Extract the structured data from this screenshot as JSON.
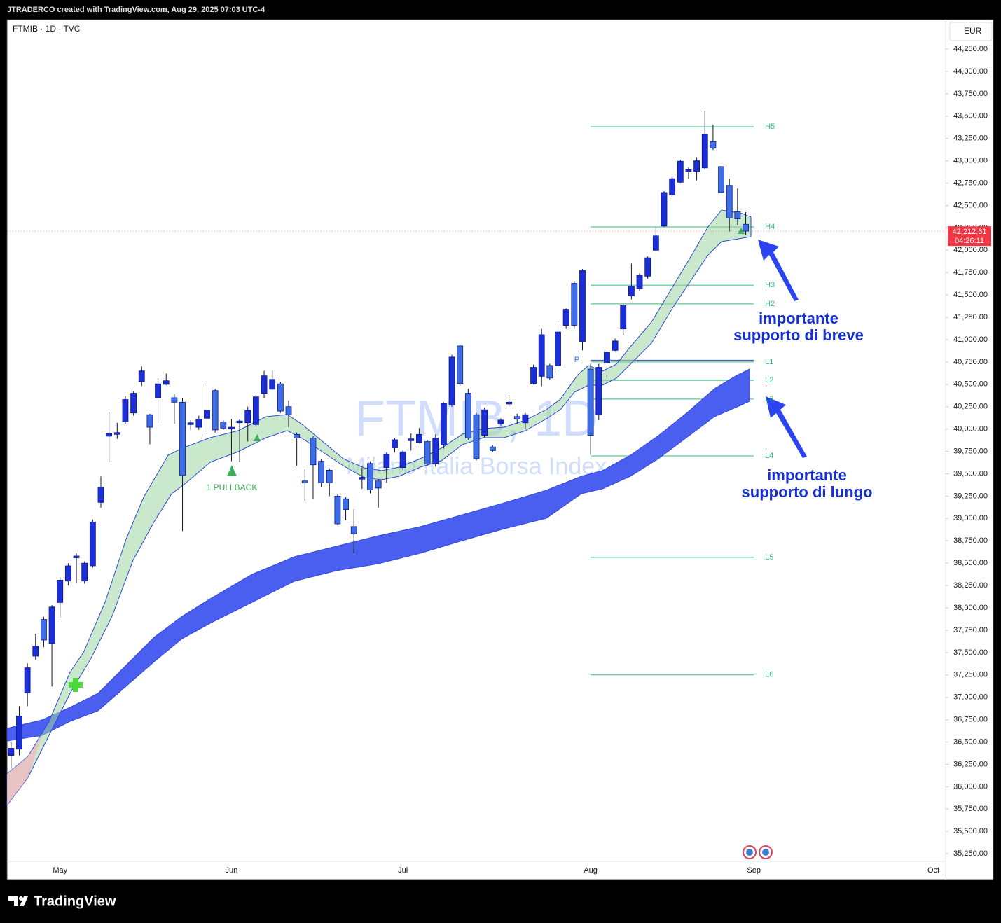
{
  "header": "JTRADERCO created with TradingView.com, Aug 29, 2025 07:03 UTC-4",
  "footer_brand": "TradingView",
  "chart_data": {
    "type": "candlestick",
    "symbol_line": "FTMIB · 1D · TVC",
    "currency": "EUR",
    "watermark": "FTMIB, 1D",
    "watermark_subtitle": "Milano Italia Borsa Index",
    "up_color": "#1c2fd6",
    "down_color": "#3d6ee6",
    "ylim": [
      35165,
      44579
    ],
    "yticks": [
      {
        "value": 35250,
        "label": "35,250.00"
      },
      {
        "value": 35500,
        "label": "35,500.00"
      },
      {
        "value": 35750,
        "label": "35,750.00"
      },
      {
        "value": 36000,
        "label": "36,000.00"
      },
      {
        "value": 36250,
        "label": "36,250.00"
      },
      {
        "value": 36500,
        "label": "36,500.00"
      },
      {
        "value": 36750,
        "label": "36,750.00"
      },
      {
        "value": 37000,
        "label": "37,000.00"
      },
      {
        "value": 37250,
        "label": "37,250.00"
      },
      {
        "value": 37500,
        "label": "37,500.00"
      },
      {
        "value": 37750,
        "label": "37,750.00"
      },
      {
        "value": 38000,
        "label": "38,000.00"
      },
      {
        "value": 38250,
        "label": "38,250.00"
      },
      {
        "value": 38500,
        "label": "38,500.00"
      },
      {
        "value": 38750,
        "label": "38,750.00"
      },
      {
        "value": 39000,
        "label": "39,000.00"
      },
      {
        "value": 39250,
        "label": "39,250.00"
      },
      {
        "value": 39500,
        "label": "39,500.00"
      },
      {
        "value": 39750,
        "label": "39,750.00"
      },
      {
        "value": 40000,
        "label": "40,000.00"
      },
      {
        "value": 40250,
        "label": "40,250.00"
      },
      {
        "value": 40500,
        "label": "40,500.00"
      },
      {
        "value": 40750,
        "label": "40,750.00"
      },
      {
        "value": 41000,
        "label": "41,000.00"
      },
      {
        "value": 41250,
        "label": "41,250.00"
      },
      {
        "value": 41500,
        "label": "41,500.00"
      },
      {
        "value": 41750,
        "label": "41,750.00"
      },
      {
        "value": 42000,
        "label": "42,000.00"
      },
      {
        "value": 42250,
        "label": "42,250.00"
      },
      {
        "value": 42500,
        "label": "42,500.00"
      },
      {
        "value": 42750,
        "label": "42,750.00"
      },
      {
        "value": 43000,
        "label": "43,000.00"
      },
      {
        "value": 43250,
        "label": "43,250.00"
      },
      {
        "value": 43500,
        "label": "43,500.00"
      },
      {
        "value": 43750,
        "label": "43,750.00"
      },
      {
        "value": 44000,
        "label": "44,000.00"
      },
      {
        "value": 44250,
        "label": "44,250.00"
      }
    ],
    "categories": [
      null,
      null,
      null,
      null,
      null,
      null,
      "May",
      null,
      null,
      null,
      null,
      null,
      null,
      null,
      null,
      null,
      null,
      null,
      null,
      null,
      null,
      null,
      null,
      null,
      null,
      null,
      null,
      "Jun",
      null,
      null,
      null,
      null,
      null,
      null,
      null,
      null,
      null,
      null,
      null,
      null,
      null,
      null,
      null,
      null,
      null,
      null,
      null,
      null,
      "Jul",
      null,
      null,
      null,
      null,
      null,
      null,
      null,
      null,
      null,
      null,
      null,
      null,
      null,
      null,
      null,
      null,
      null,
      null,
      null,
      null,
      null,
      null,
      "Aug",
      null,
      null,
      null,
      null,
      null,
      null,
      null,
      null,
      null,
      null,
      null,
      null,
      null,
      null,
      null,
      null,
      null,
      null,
      null,
      "Sep",
      null,
      null,
      null,
      null,
      null,
      null,
      null,
      null,
      null,
      null,
      null,
      null,
      null,
      null,
      null,
      null,
      null,
      null,
      null,
      null,
      null,
      "Oct",
      null
    ],
    "open": [
      36350,
      36420,
      37050,
      37460,
      37870,
      37600,
      38060,
      38300,
      38560,
      38300,
      38470,
      39180,
      39920,
      39940,
      40080,
      40180,
      40530,
      40160,
      40350,
      40500,
      40350,
      40300,
      40050,
      40020,
      40120,
      40430,
      40080,
      40000,
      40070,
      40070,
      40050,
      40400,
      40445,
      40505,
      40250,
      39940,
      39420,
      39900,
      39640,
      39540,
      39250,
      39220,
      38910,
      39440,
      39615,
      39420,
      39570,
      39790,
      39570,
      39870,
      39850,
      39860,
      39610,
      39820,
      40270,
      40930,
      40400,
      40160,
      39930,
      39800,
      40060,
      40280,
      40140,
      40070,
      40510,
      40590,
      40710,
      40710,
      41160,
      41630,
      40980,
      40670,
      40160,
      40740,
      40880,
      41120,
      41490,
      41570,
      41710,
      42000,
      42270,
      42620,
      42760,
      42880,
      42880,
      42920,
      43215,
      42935,
      42725,
      42430,
      42290,
      null,
      null,
      null,
      null,
      null,
      null,
      null,
      null,
      null,
      null,
      null,
      null,
      null,
      null,
      null,
      null,
      null,
      null,
      null,
      null,
      null,
      null,
      null,
      null
    ],
    "high": [
      36500,
      36900,
      37380,
      37710,
      37900,
      38030,
      38340,
      38500,
      38610,
      38520,
      38990,
      39470,
      40190,
      40070,
      40370,
      40420,
      40700,
      40170,
      40570,
      40620,
      40390,
      40350,
      40100,
      40150,
      40490,
      40450,
      40100,
      40110,
      40110,
      40250,
      40380,
      40650,
      40660,
      40530,
      40320,
      39960,
      39550,
      39920,
      39660,
      39560,
      39270,
      39240,
      39100,
      39570,
      39640,
      39440,
      39740,
      39900,
      39760,
      39950,
      40010,
      39880,
      39940,
      40300,
      40830,
      40950,
      40450,
      40180,
      40240,
      39820,
      40120,
      40380,
      40170,
      40180,
      40720,
      41120,
      40730,
      41210,
      41350,
      41660,
      41790,
      40730,
      40730,
      40880,
      41010,
      41400,
      41850,
      41740,
      41930,
      42260,
      42660,
      42820,
      43010,
      42930,
      43040,
      43560,
      43405,
      42940,
      42800,
      42690,
      42425,
      null,
      null,
      null,
      null,
      null,
      null,
      null,
      null,
      null,
      null,
      null,
      null,
      null,
      null,
      null,
      null,
      null,
      null,
      null,
      null,
      null,
      null,
      null,
      null
    ],
    "low": [
      36200,
      36350,
      36900,
      37420,
      37560,
      37120,
      37890,
      38250,
      38280,
      38270,
      38450,
      39120,
      39630,
      39890,
      40060,
      40150,
      40480,
      39830,
      40070,
      40490,
      40060,
      38860,
      39990,
      39990,
      39940,
      39960,
      39990,
      39640,
      39630,
      39860,
      40020,
      40350,
      40440,
      40180,
      40020,
      39590,
      39200,
      39220,
      39350,
      39250,
      38930,
      38980,
      38610,
      39330,
      39280,
      39120,
      39400,
      39740,
      39540,
      39760,
      39840,
      39590,
      39580,
      39780,
      40250,
      40480,
      39880,
      39650,
      39900,
      39740,
      40040,
      40250,
      40060,
      40000,
      40500,
      40480,
      40550,
      40650,
      41120,
      41120,
      40880,
      39710,
      40100,
      40560,
      40870,
      41050,
      41450,
      41540,
      41680,
      41990,
      42260,
      42600,
      42750,
      42800,
      42780,
      42900,
      43120,
      42640,
      42210,
      42280,
      42170,
      null,
      null,
      null,
      null,
      null,
      null,
      null,
      null,
      null,
      null,
      null,
      null,
      null,
      null,
      null,
      null,
      null,
      null,
      null,
      null,
      null,
      null,
      null,
      null
    ],
    "close": [
      36430,
      36790,
      37330,
      37570,
      37640,
      38010,
      38310,
      38470,
      38580,
      38500,
      38960,
      39350,
      39950,
      39960,
      40330,
      40400,
      40650,
      40020,
      40505,
      40540,
      40300,
      39480,
      40070,
      40110,
      40210,
      39990,
      40010,
      40020,
      40090,
      40210,
      40360,
      40595,
      40555,
      40200,
      40160,
      39900,
      39400,
      39600,
      39400,
      39400,
      38940,
      39100,
      38830,
      39460,
      39320,
      39340,
      39720,
      39880,
      39745,
      39890,
      39940,
      39610,
      39900,
      40285,
      40805,
      40510,
      39900,
      39670,
      40215,
      39760,
      40100,
      40300,
      40110,
      40160,
      40690,
      41055,
      40570,
      41085,
      41340,
      41160,
      41775,
      39930,
      40690,
      40860,
      40985,
      41380,
      41600,
      41720,
      41915,
      42160,
      42645,
      42800,
      42995,
      42900,
      43000,
      43295,
      43140,
      42645,
      42360,
      42350,
      42212.61,
      null,
      null,
      null,
      null,
      null,
      null,
      null,
      null,
      null,
      null,
      null,
      null,
      null,
      null,
      null,
      null,
      null,
      null,
      null,
      null,
      null,
      null,
      null,
      null
    ],
    "levels": [
      {
        "label": "H5",
        "value": 43381
      },
      {
        "label": "H4",
        "value": 42261
      },
      {
        "label": "H3",
        "value": 41610
      },
      {
        "label": "H2",
        "value": 41400
      },
      {
        "label": "L1",
        "value": 40750
      },
      {
        "label": "L2",
        "value": 40545
      },
      {
        "label": "L3",
        "value": 40335
      },
      {
        "label": "L4",
        "value": 39700
      },
      {
        "label": "L5",
        "value": 38565
      },
      {
        "label": "L6",
        "value": 37250
      }
    ],
    "pivot": {
      "label": "P",
      "value": 40770
    },
    "level_color": "#2ec27e",
    "last_price": {
      "value": 42212.61,
      "label": "42,212.61"
    },
    "countdown": "04:26:11",
    "signal_label": "1.PULLBACK",
    "annotations": [
      {
        "lines": [
          "importante",
          "supporto di breve"
        ]
      },
      {
        "lines": [
          "importante",
          "supporto di lungo"
        ]
      }
    ]
  }
}
